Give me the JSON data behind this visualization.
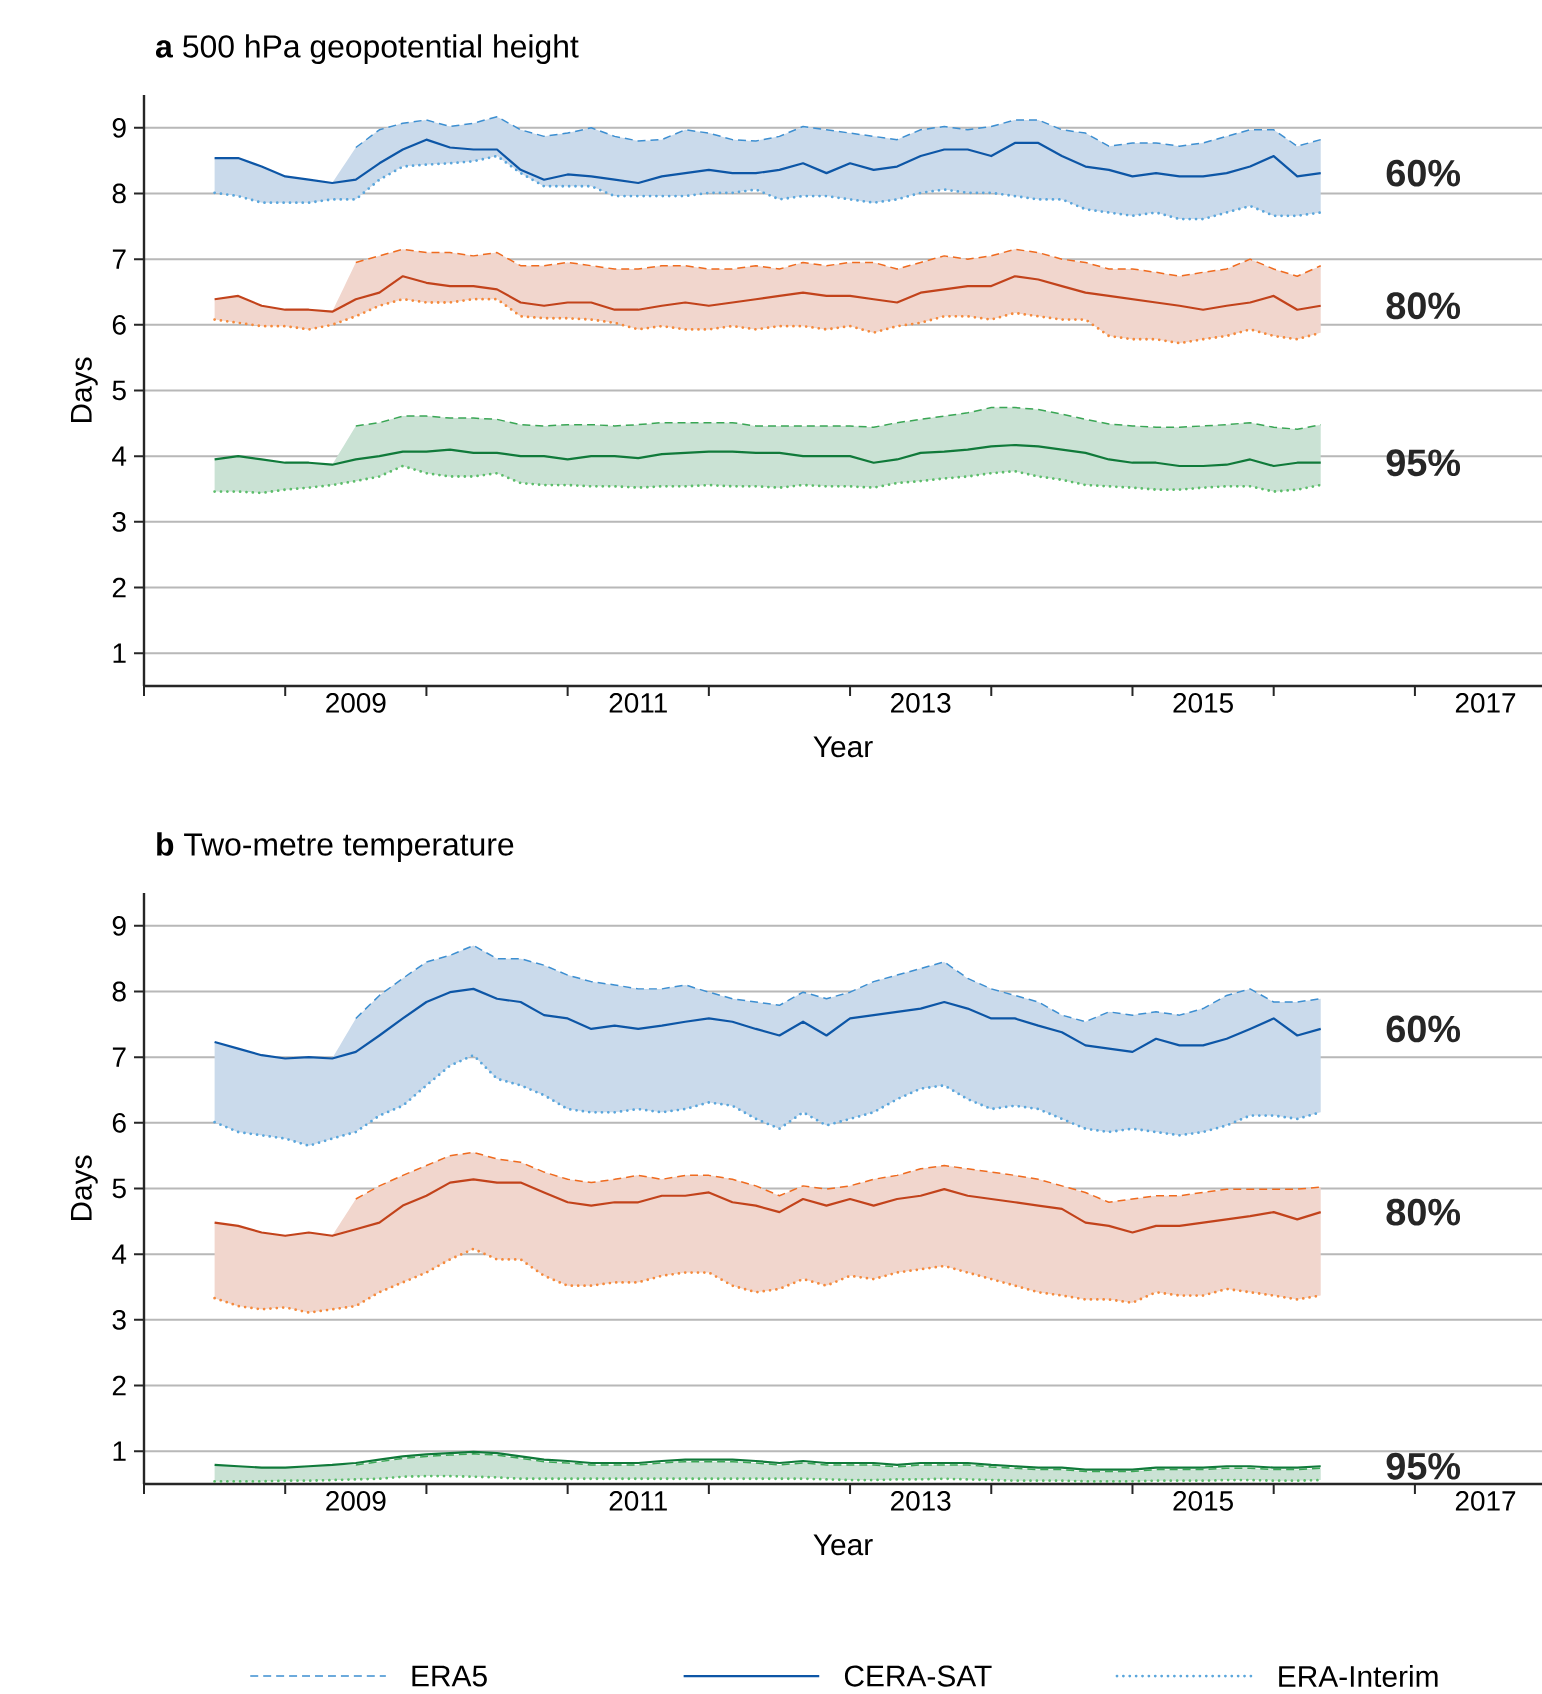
{
  "chart_data": [
    {
      "type": "line",
      "title": "**a** 500 hPa geopotential height",
      "xlabel": "Year",
      "ylabel": "Days",
      "grid": "y",
      "xlim": [
        2008,
        2017.9
      ],
      "ylim": [
        0.5,
        9.5
      ],
      "xticks": [
        {
          "value": 2008,
          "label": null
        },
        {
          "value": 2009,
          "label": null
        },
        {
          "value": 2009.5,
          "label": "2009"
        },
        {
          "value": 2010,
          "label": null
        },
        {
          "value": 2011,
          "label": null
        },
        {
          "value": 2011.5,
          "label": "2011"
        },
        {
          "value": 2012,
          "label": null
        },
        {
          "value": 2013,
          "label": null
        },
        {
          "value": 2013.5,
          "label": "2013"
        },
        {
          "value": 2014,
          "label": null
        },
        {
          "value": 2015,
          "label": null
        },
        {
          "value": 2015.5,
          "label": "2015"
        },
        {
          "value": 2016,
          "label": null
        },
        {
          "value": 2017,
          "label": null
        },
        {
          "value": 2017.5,
          "label": "2017"
        }
      ],
      "yticks": [
        1,
        2,
        3,
        4,
        5,
        6,
        7,
        8,
        9
      ],
      "x": [
        2008.5,
        2008.667,
        2008.833,
        2009.0,
        2009.167,
        2009.333,
        2009.5,
        2009.667,
        2009.833,
        2010.0,
        2010.167,
        2010.333,
        2010.5,
        2010.667,
        2010.833,
        2011.0,
        2011.167,
        2011.333,
        2011.5,
        2011.667,
        2011.833,
        2012.0,
        2012.167,
        2012.333,
        2012.5,
        2012.667,
        2012.833,
        2013.0,
        2013.167,
        2013.333,
        2013.5,
        2013.667,
        2013.833,
        2014.0,
        2014.167,
        2014.333,
        2014.5,
        2014.667,
        2014.833,
        2015.0,
        2015.167,
        2015.333,
        2015.5,
        2015.667,
        2015.833,
        2016.0,
        2016.167,
        2016.333
      ],
      "series": [
        {
          "color": "#3d8fd1",
          "line_style": "dashed",
          "values": [
            null,
            null,
            null,
            null,
            null,
            null,
            8.7,
            8.97,
            9.07,
            9.12,
            9.02,
            9.07,
            9.17,
            8.97,
            8.87,
            8.92,
            9.0,
            8.87,
            8.8,
            8.82,
            8.97,
            8.92,
            8.82,
            8.8,
            8.87,
            9.02,
            8.97,
            8.92,
            8.87,
            8.82,
            8.97,
            9.02,
            8.97,
            9.02,
            9.12,
            9.12,
            8.97,
            8.92,
            8.72,
            8.77,
            8.77,
            8.72,
            8.77,
            8.87,
            8.97,
            8.97,
            8.72,
            8.82
          ]
        },
        {
          "color": "#0d56a6",
          "line_style": "solid",
          "values": [
            8.54,
            8.54,
            8.41,
            8.26,
            8.21,
            8.16,
            8.21,
            8.46,
            8.67,
            8.82,
            8.7,
            8.67,
            8.67,
            8.36,
            8.21,
            8.29,
            8.26,
            8.21,
            8.16,
            8.26,
            8.31,
            8.36,
            8.31,
            8.31,
            8.36,
            8.46,
            8.31,
            8.46,
            8.36,
            8.41,
            8.57,
            8.67,
            8.67,
            8.57,
            8.77,
            8.77,
            8.57,
            8.41,
            8.36,
            8.26,
            8.31,
            8.26,
            8.26,
            8.31,
            8.41,
            8.57,
            8.26,
            8.31
          ],
          "upper": [
            8.54,
            8.54,
            8.41,
            8.26,
            8.21,
            8.16,
            8.7,
            8.97,
            9.07,
            9.12,
            9.02,
            9.07,
            9.17,
            8.97,
            8.87,
            8.92,
            9.0,
            8.87,
            8.8,
            8.82,
            8.97,
            8.92,
            8.82,
            8.8,
            8.87,
            9.02,
            8.97,
            8.92,
            8.87,
            8.82,
            8.97,
            9.02,
            8.97,
            9.02,
            9.12,
            9.12,
            8.97,
            8.92,
            8.72,
            8.77,
            8.77,
            8.72,
            8.77,
            8.87,
            8.97,
            8.97,
            8.72,
            8.82
          ],
          "lower": [
            8.01,
            7.96,
            7.86,
            7.86,
            7.86,
            7.91,
            7.91,
            8.21,
            8.41,
            8.44,
            8.46,
            8.49,
            8.57,
            8.31,
            8.11,
            8.11,
            8.11,
            7.96,
            7.96,
            7.96,
            7.96,
            8.01,
            8.01,
            8.06,
            7.91,
            7.96,
            7.96,
            7.91,
            7.86,
            7.91,
            8.01,
            8.06,
            8.01,
            8.01,
            7.96,
            7.91,
            7.91,
            7.76,
            7.71,
            7.66,
            7.71,
            7.61,
            7.61,
            7.71,
            7.81,
            7.66,
            7.66,
            7.71
          ]
        },
        {
          "color": "#5aa6dc",
          "line_style": "dotted",
          "values": [
            8.01,
            7.96,
            7.86,
            7.86,
            7.86,
            7.91,
            7.91,
            8.21,
            8.41,
            8.44,
            8.46,
            8.49,
            8.57,
            8.31,
            8.11,
            8.11,
            8.11,
            7.96,
            7.96,
            7.96,
            7.96,
            8.01,
            8.01,
            8.06,
            7.91,
            7.96,
            7.96,
            7.91,
            7.86,
            7.91,
            8.01,
            8.06,
            8.01,
            8.01,
            7.96,
            7.91,
            7.91,
            7.76,
            7.71,
            7.66,
            7.71,
            7.61,
            7.61,
            7.71,
            7.81,
            7.66,
            7.66,
            7.71
          ]
        },
        {
          "color": "#ef6b1f",
          "line_style": "dashed",
          "values": [
            null,
            null,
            null,
            null,
            null,
            null,
            6.95,
            7.05,
            7.15,
            7.1,
            7.1,
            7.05,
            7.1,
            6.9,
            6.9,
            6.95,
            6.9,
            6.85,
            6.85,
            6.9,
            6.9,
            6.85,
            6.85,
            6.9,
            6.85,
            6.95,
            6.9,
            6.95,
            6.95,
            6.85,
            6.95,
            7.05,
            7.0,
            7.05,
            7.15,
            7.1,
            7.0,
            6.95,
            6.85,
            6.85,
            6.8,
            6.74,
            6.8,
            6.85,
            7.0,
            6.85,
            6.74,
            6.9
          ]
        },
        {
          "color": "#c2431b",
          "line_style": "solid",
          "values": [
            6.39,
            6.44,
            6.29,
            6.23,
            6.23,
            6.2,
            6.39,
            6.49,
            6.74,
            6.64,
            6.59,
            6.59,
            6.54,
            6.34,
            6.29,
            6.34,
            6.34,
            6.23,
            6.23,
            6.29,
            6.34,
            6.29,
            6.34,
            6.39,
            6.44,
            6.49,
            6.44,
            6.44,
            6.39,
            6.34,
            6.49,
            6.54,
            6.59,
            6.59,
            6.74,
            6.69,
            6.59,
            6.49,
            6.44,
            6.39,
            6.34,
            6.29,
            6.23,
            6.29,
            6.34,
            6.44,
            6.23,
            6.29
          ],
          "upper": [
            6.39,
            6.44,
            6.29,
            6.23,
            6.23,
            6.2,
            6.95,
            7.05,
            7.15,
            7.1,
            7.1,
            7.05,
            7.1,
            6.9,
            6.9,
            6.95,
            6.9,
            6.85,
            6.85,
            6.9,
            6.9,
            6.85,
            6.85,
            6.9,
            6.85,
            6.95,
            6.9,
            6.95,
            6.95,
            6.85,
            6.95,
            7.05,
            7.0,
            7.05,
            7.15,
            7.1,
            7.0,
            6.95,
            6.85,
            6.85,
            6.8,
            6.74,
            6.8,
            6.85,
            7.0,
            6.85,
            6.74,
            6.9
          ],
          "lower": [
            6.08,
            6.03,
            5.98,
            5.98,
            5.93,
            6.0,
            6.13,
            6.29,
            6.39,
            6.34,
            6.34,
            6.39,
            6.39,
            6.13,
            6.1,
            6.1,
            6.08,
            6.03,
            5.93,
            5.98,
            5.93,
            5.93,
            5.98,
            5.93,
            5.98,
            5.98,
            5.93,
            5.98,
            5.88,
            5.98,
            6.03,
            6.13,
            6.13,
            6.08,
            6.18,
            6.13,
            6.08,
            6.08,
            5.83,
            5.78,
            5.78,
            5.72,
            5.78,
            5.83,
            5.93,
            5.83,
            5.78,
            5.88
          ]
        },
        {
          "color": "#f58a3c",
          "line_style": "dotted",
          "values": [
            6.08,
            6.03,
            5.98,
            5.98,
            5.93,
            6.0,
            6.13,
            6.29,
            6.39,
            6.34,
            6.34,
            6.39,
            6.39,
            6.13,
            6.1,
            6.1,
            6.08,
            6.03,
            5.93,
            5.98,
            5.93,
            5.93,
            5.98,
            5.93,
            5.98,
            5.98,
            5.93,
            5.98,
            5.88,
            5.98,
            6.03,
            6.13,
            6.13,
            6.08,
            6.18,
            6.13,
            6.08,
            6.08,
            5.83,
            5.78,
            5.78,
            5.72,
            5.78,
            5.83,
            5.93,
            5.83,
            5.78,
            5.88
          ]
        },
        {
          "color": "#3aa655",
          "line_style": "dashed",
          "values": [
            null,
            null,
            null,
            null,
            null,
            null,
            4.46,
            4.51,
            4.61,
            4.61,
            4.58,
            4.58,
            4.56,
            4.48,
            4.46,
            4.48,
            4.48,
            4.46,
            4.48,
            4.51,
            4.51,
            4.51,
            4.51,
            4.46,
            4.46,
            4.46,
            4.46,
            4.46,
            4.44,
            4.51,
            4.56,
            4.61,
            4.66,
            4.74,
            4.74,
            4.71,
            4.64,
            4.56,
            4.49,
            4.46,
            4.44,
            4.44,
            4.46,
            4.48,
            4.51,
            4.44,
            4.41,
            4.48
          ]
        },
        {
          "color": "#107a3a",
          "line_style": "solid",
          "values": [
            3.95,
            4.0,
            3.95,
            3.9,
            3.9,
            3.87,
            3.95,
            4.0,
            4.07,
            4.07,
            4.1,
            4.05,
            4.05,
            4.0,
            4.0,
            3.95,
            4.0,
            4.0,
            3.97,
            4.03,
            4.05,
            4.07,
            4.07,
            4.05,
            4.05,
            4.0,
            4.0,
            4.0,
            3.9,
            3.95,
            4.05,
            4.07,
            4.1,
            4.15,
            4.17,
            4.15,
            4.1,
            4.05,
            3.95,
            3.9,
            3.9,
            3.85,
            3.85,
            3.87,
            3.95,
            3.85,
            3.9,
            3.9
          ],
          "upper": [
            3.95,
            4.0,
            3.95,
            3.9,
            3.9,
            3.87,
            4.46,
            4.51,
            4.61,
            4.61,
            4.58,
            4.58,
            4.56,
            4.48,
            4.46,
            4.48,
            4.48,
            4.46,
            4.48,
            4.51,
            4.51,
            4.51,
            4.51,
            4.46,
            4.46,
            4.46,
            4.46,
            4.46,
            4.44,
            4.51,
            4.56,
            4.61,
            4.66,
            4.74,
            4.74,
            4.71,
            4.64,
            4.56,
            4.49,
            4.46,
            4.44,
            4.44,
            4.46,
            4.48,
            4.51,
            4.44,
            4.41,
            4.48
          ],
          "lower": [
            3.46,
            3.46,
            3.44,
            3.49,
            3.52,
            3.56,
            3.62,
            3.69,
            3.85,
            3.74,
            3.69,
            3.69,
            3.74,
            3.59,
            3.56,
            3.56,
            3.54,
            3.54,
            3.52,
            3.54,
            3.54,
            3.56,
            3.54,
            3.54,
            3.52,
            3.56,
            3.54,
            3.54,
            3.52,
            3.59,
            3.62,
            3.66,
            3.69,
            3.74,
            3.77,
            3.69,
            3.64,
            3.56,
            3.54,
            3.52,
            3.49,
            3.49,
            3.52,
            3.54,
            3.54,
            3.46,
            3.49,
            3.56
          ]
        },
        {
          "color": "#5cbd6a",
          "line_style": "dotted",
          "values": [
            3.46,
            3.46,
            3.44,
            3.49,
            3.52,
            3.56,
            3.62,
            3.69,
            3.85,
            3.74,
            3.69,
            3.69,
            3.74,
            3.59,
            3.56,
            3.56,
            3.54,
            3.54,
            3.52,
            3.54,
            3.54,
            3.56,
            3.54,
            3.54,
            3.52,
            3.56,
            3.54,
            3.54,
            3.52,
            3.59,
            3.62,
            3.66,
            3.69,
            3.74,
            3.77,
            3.69,
            3.64,
            3.56,
            3.54,
            3.52,
            3.49,
            3.49,
            3.52,
            3.54,
            3.54,
            3.46,
            3.49,
            3.56
          ]
        }
      ],
      "annotations": [
        "60%",
        "80%",
        "95%"
      ]
    },
    {
      "type": "line",
      "title": "**b** Two-metre temperature",
      "xlabel": "Year",
      "ylabel": "Days",
      "grid": "y",
      "legend": "bottom",
      "xlim": [
        2008,
        2017.9
      ],
      "ylim": [
        0.5,
        9.5
      ],
      "xticks": [
        {
          "value": 2008,
          "label": null
        },
        {
          "value": 2009,
          "label": null
        },
        {
          "value": 2009.5,
          "label": "2009"
        },
        {
          "value": 2010,
          "label": null
        },
        {
          "value": 2011,
          "label": null
        },
        {
          "value": 2011.5,
          "label": "2011"
        },
        {
          "value": 2012,
          "label": null
        },
        {
          "value": 2013,
          "label": null
        },
        {
          "value": 2013.5,
          "label": "2013"
        },
        {
          "value": 2014,
          "label": null
        },
        {
          "value": 2015,
          "label": null
        },
        {
          "value": 2015.5,
          "label": "2015"
        },
        {
          "value": 2016,
          "label": null
        },
        {
          "value": 2017,
          "label": null
        },
        {
          "value": 2017.5,
          "label": "2017"
        }
      ],
      "yticks": [
        1,
        2,
        3,
        4,
        5,
        6,
        7,
        8,
        9
      ],
      "x": [
        2008.5,
        2008.667,
        2008.833,
        2009.0,
        2009.167,
        2009.333,
        2009.5,
        2009.667,
        2009.833,
        2010.0,
        2010.167,
        2010.333,
        2010.5,
        2010.667,
        2010.833,
        2011.0,
        2011.167,
        2011.333,
        2011.5,
        2011.667,
        2011.833,
        2012.0,
        2012.167,
        2012.333,
        2012.5,
        2012.667,
        2012.833,
        2013.0,
        2013.167,
        2013.333,
        2013.5,
        2013.667,
        2013.833,
        2014.0,
        2014.167,
        2014.333,
        2014.5,
        2014.667,
        2014.833,
        2015.0,
        2015.167,
        2015.333,
        2015.5,
        2015.667,
        2015.833,
        2016.0,
        2016.167,
        2016.333
      ],
      "series": [
        {
          "name": "ERA5",
          "color": "#3d8fd1",
          "line_style": "dashed",
          "values": [
            null,
            null,
            null,
            null,
            null,
            null,
            7.59,
            7.94,
            8.2,
            8.45,
            8.55,
            8.7,
            8.5,
            8.5,
            8.4,
            8.25,
            8.15,
            8.1,
            8.04,
            8.04,
            8.1,
            7.99,
            7.89,
            7.84,
            7.79,
            7.99,
            7.89,
            7.99,
            8.15,
            8.25,
            8.35,
            8.45,
            8.2,
            8.04,
            7.94,
            7.84,
            7.64,
            7.54,
            7.69,
            7.64,
            7.69,
            7.64,
            7.74,
            7.94,
            8.04,
            7.84,
            7.84,
            7.89
          ]
        },
        {
          "name": "CERA-SAT",
          "color": "#0d56a6",
          "line_style": "solid",
          "values": [
            7.23,
            7.13,
            7.03,
            6.98,
            7.0,
            6.98,
            7.08,
            7.33,
            7.59,
            7.84,
            7.99,
            8.04,
            7.89,
            7.84,
            7.64,
            7.59,
            7.43,
            7.48,
            7.43,
            7.48,
            7.54,
            7.59,
            7.54,
            7.43,
            7.33,
            7.54,
            7.33,
            7.59,
            7.64,
            7.69,
            7.74,
            7.84,
            7.74,
            7.59,
            7.59,
            7.48,
            7.38,
            7.18,
            7.13,
            7.08,
            7.28,
            7.18,
            7.18,
            7.28,
            7.43,
            7.59,
            7.33,
            7.43
          ],
          "upper": [
            7.23,
            7.13,
            7.03,
            6.98,
            7.0,
            6.98,
            7.59,
            7.94,
            8.2,
            8.45,
            8.55,
            8.7,
            8.5,
            8.5,
            8.4,
            8.25,
            8.15,
            8.1,
            8.04,
            8.04,
            8.1,
            7.99,
            7.89,
            7.84,
            7.79,
            7.99,
            7.89,
            7.99,
            8.15,
            8.25,
            8.35,
            8.45,
            8.2,
            8.04,
            7.94,
            7.84,
            7.64,
            7.54,
            7.69,
            7.64,
            7.69,
            7.64,
            7.74,
            7.94,
            8.04,
            7.84,
            7.84,
            7.89
          ],
          "lower": [
            6.01,
            5.86,
            5.81,
            5.76,
            5.65,
            5.76,
            5.86,
            6.11,
            6.26,
            6.57,
            6.87,
            7.03,
            6.67,
            6.57,
            6.42,
            6.21,
            6.16,
            6.16,
            6.21,
            6.16,
            6.21,
            6.31,
            6.26,
            6.06,
            5.91,
            6.16,
            5.96,
            6.06,
            6.16,
            6.36,
            6.52,
            6.57,
            6.36,
            6.21,
            6.26,
            6.21,
            6.06,
            5.91,
            5.86,
            5.91,
            5.86,
            5.81,
            5.86,
            5.96,
            6.11,
            6.11,
            6.06,
            6.16
          ]
        },
        {
          "name": "ERA-Interim",
          "color": "#5aa6dc",
          "line_style": "dotted",
          "values": [
            6.01,
            5.86,
            5.81,
            5.76,
            5.65,
            5.76,
            5.86,
            6.11,
            6.26,
            6.57,
            6.87,
            7.03,
            6.67,
            6.57,
            6.42,
            6.21,
            6.16,
            6.16,
            6.21,
            6.16,
            6.21,
            6.31,
            6.26,
            6.06,
            5.91,
            6.16,
            5.96,
            6.06,
            6.16,
            6.36,
            6.52,
            6.57,
            6.36,
            6.21,
            6.26,
            6.21,
            6.06,
            5.91,
            5.86,
            5.91,
            5.86,
            5.81,
            5.86,
            5.96,
            6.11,
            6.11,
            6.06,
            6.16
          ]
        },
        {
          "color": "#ef6b1f",
          "line_style": "dashed",
          "values": [
            null,
            null,
            null,
            null,
            null,
            null,
            4.84,
            5.04,
            5.2,
            5.35,
            5.5,
            5.55,
            5.45,
            5.4,
            5.25,
            5.14,
            5.09,
            5.14,
            5.2,
            5.14,
            5.2,
            5.2,
            5.14,
            5.04,
            4.89,
            5.04,
            4.99,
            5.04,
            5.14,
            5.2,
            5.3,
            5.35,
            5.3,
            5.25,
            5.2,
            5.14,
            5.04,
            4.94,
            4.79,
            4.84,
            4.89,
            4.89,
            4.94,
            4.99,
            4.99,
            4.99,
            4.99,
            5.02
          ]
        },
        {
          "color": "#c2431b",
          "line_style": "solid",
          "values": [
            4.48,
            4.43,
            4.33,
            4.28,
            4.33,
            4.28,
            4.38,
            4.48,
            4.74,
            4.89,
            5.09,
            5.14,
            5.09,
            5.09,
            4.94,
            4.79,
            4.74,
            4.79,
            4.79,
            4.89,
            4.89,
            4.94,
            4.79,
            4.74,
            4.64,
            4.84,
            4.74,
            4.84,
            4.74,
            4.84,
            4.89,
            4.99,
            4.89,
            4.84,
            4.79,
            4.74,
            4.69,
            4.48,
            4.43,
            4.33,
            4.43,
            4.43,
            4.48,
            4.53,
            4.58,
            4.64,
            4.53,
            4.64
          ],
          "upper": [
            4.48,
            4.43,
            4.33,
            4.28,
            4.33,
            4.28,
            4.84,
            5.04,
            5.2,
            5.35,
            5.5,
            5.55,
            5.45,
            5.4,
            5.25,
            5.14,
            5.09,
            5.14,
            5.2,
            5.14,
            5.2,
            5.2,
            5.14,
            5.04,
            4.89,
            5.04,
            4.99,
            5.04,
            5.14,
            5.2,
            5.3,
            5.35,
            5.3,
            5.25,
            5.2,
            5.14,
            5.04,
            4.94,
            4.79,
            4.84,
            4.89,
            4.89,
            4.94,
            4.99,
            4.99,
            4.99,
            4.99,
            5.02
          ],
          "lower": [
            3.33,
            3.21,
            3.16,
            3.19,
            3.11,
            3.16,
            3.21,
            3.42,
            3.57,
            3.72,
            3.92,
            4.08,
            3.92,
            3.92,
            3.67,
            3.52,
            3.52,
            3.57,
            3.57,
            3.67,
            3.72,
            3.72,
            3.52,
            3.42,
            3.47,
            3.62,
            3.52,
            3.67,
            3.62,
            3.72,
            3.77,
            3.82,
            3.72,
            3.62,
            3.52,
            3.42,
            3.37,
            3.31,
            3.31,
            3.26,
            3.42,
            3.37,
            3.37,
            3.47,
            3.42,
            3.37,
            3.31,
            3.37
          ]
        },
        {
          "color": "#f58a3c",
          "line_style": "dotted",
          "values": [
            3.33,
            3.21,
            3.16,
            3.19,
            3.11,
            3.16,
            3.21,
            3.42,
            3.57,
            3.72,
            3.92,
            4.08,
            3.92,
            3.92,
            3.67,
            3.52,
            3.52,
            3.57,
            3.57,
            3.67,
            3.72,
            3.72,
            3.52,
            3.42,
            3.47,
            3.62,
            3.52,
            3.67,
            3.62,
            3.72,
            3.77,
            3.82,
            3.72,
            3.62,
            3.52,
            3.42,
            3.37,
            3.31,
            3.31,
            3.26,
            3.42,
            3.37,
            3.37,
            3.47,
            3.42,
            3.37,
            3.31,
            3.37
          ]
        },
        {
          "color": "#3aa655",
          "line_style": "dashed",
          "values": [
            null,
            null,
            null,
            null,
            null,
            null,
            0.79,
            0.84,
            0.89,
            0.92,
            0.94,
            0.96,
            0.94,
            0.89,
            0.84,
            0.82,
            0.79,
            0.79,
            0.79,
            0.82,
            0.84,
            0.84,
            0.84,
            0.82,
            0.79,
            0.82,
            0.79,
            0.79,
            0.79,
            0.76,
            0.79,
            0.79,
            0.79,
            0.76,
            0.74,
            0.72,
            0.72,
            0.69,
            0.69,
            0.69,
            0.72,
            0.72,
            0.72,
            0.74,
            0.74,
            0.72,
            0.72,
            0.74
          ]
        },
        {
          "color": "#107a3a",
          "line_style": "solid",
          "values": [
            0.79,
            0.77,
            0.75,
            0.75,
            0.77,
            0.79,
            0.82,
            0.87,
            0.92,
            0.95,
            0.97,
            0.99,
            0.97,
            0.92,
            0.87,
            0.85,
            0.82,
            0.82,
            0.82,
            0.85,
            0.87,
            0.87,
            0.87,
            0.85,
            0.82,
            0.85,
            0.82,
            0.82,
            0.82,
            0.79,
            0.82,
            0.82,
            0.82,
            0.79,
            0.77,
            0.75,
            0.75,
            0.72,
            0.72,
            0.72,
            0.75,
            0.75,
            0.75,
            0.77,
            0.77,
            0.75,
            0.75,
            0.77
          ],
          "upper": [
            0.79,
            0.77,
            0.75,
            0.75,
            0.77,
            0.79,
            0.79,
            0.84,
            0.89,
            0.92,
            0.94,
            0.96,
            0.94,
            0.89,
            0.84,
            0.82,
            0.79,
            0.79,
            0.79,
            0.82,
            0.84,
            0.84,
            0.84,
            0.82,
            0.79,
            0.82,
            0.79,
            0.79,
            0.79,
            0.76,
            0.79,
            0.79,
            0.79,
            0.76,
            0.74,
            0.72,
            0.72,
            0.69,
            0.69,
            0.69,
            0.72,
            0.72,
            0.72,
            0.74,
            0.74,
            0.72,
            0.72,
            0.74
          ],
          "lower": [
            0.54,
            0.54,
            0.54,
            0.55,
            0.55,
            0.56,
            0.57,
            0.58,
            0.61,
            0.62,
            0.62,
            0.61,
            0.6,
            0.58,
            0.58,
            0.58,
            0.58,
            0.58,
            0.58,
            0.58,
            0.58,
            0.58,
            0.58,
            0.58,
            0.58,
            0.58,
            0.57,
            0.56,
            0.56,
            0.57,
            0.57,
            0.58,
            0.57,
            0.56,
            0.55,
            0.55,
            0.55,
            0.54,
            0.54,
            0.54,
            0.55,
            0.55,
            0.55,
            0.56,
            0.56,
            0.55,
            0.55,
            0.56
          ]
        },
        {
          "color": "#5cbd6a",
          "line_style": "dotted",
          "values": [
            0.54,
            0.54,
            0.54,
            0.55,
            0.55,
            0.56,
            0.57,
            0.58,
            0.61,
            0.62,
            0.62,
            0.61,
            0.6,
            0.58,
            0.58,
            0.58,
            0.58,
            0.58,
            0.58,
            0.58,
            0.58,
            0.58,
            0.58,
            0.58,
            0.58,
            0.58,
            0.57,
            0.56,
            0.56,
            0.57,
            0.57,
            0.58,
            0.57,
            0.56,
            0.55,
            0.55,
            0.55,
            0.54,
            0.54,
            0.54,
            0.55,
            0.55,
            0.55,
            0.56,
            0.56,
            0.55,
            0.55,
            0.56
          ]
        }
      ],
      "annotations": [
        "60%",
        "80%",
        "95%"
      ]
    }
  ]
}
